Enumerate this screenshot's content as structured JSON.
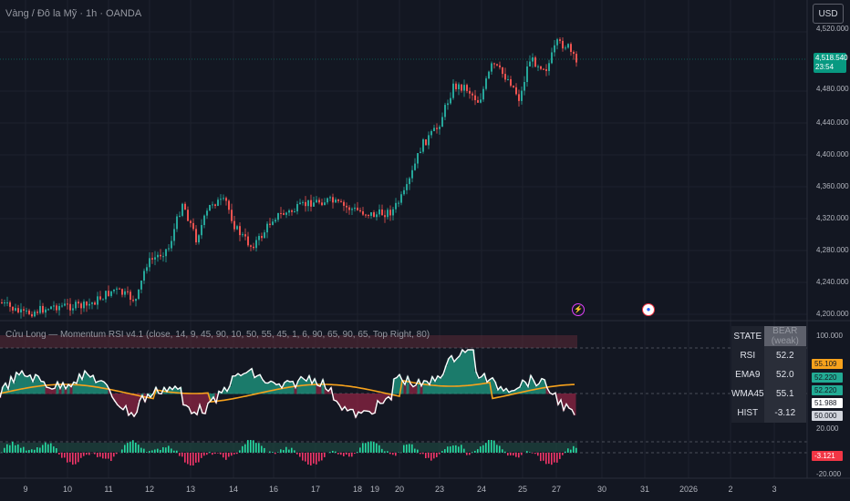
{
  "header": {
    "title": "Vàng / Đô la Mỹ · 1h · OANDA",
    "currency_button": "USD"
  },
  "price_axis": {
    "labels": [
      "4,520.000",
      "4,480.000",
      "4,440.000",
      "4,400.000",
      "4,360.000",
      "4,320.000",
      "4,280.000",
      "4,240.000",
      "4,200.000"
    ],
    "last_price": "4,518.540",
    "countdown": "23:54"
  },
  "indicator": {
    "title": "Cửu Long — Momentum RSI v4.1 (close, 14, 9, 45, 90, 10, 50, 55, 45, 1, 6, 90, 65, 90, 65, Top Right, 80)",
    "axis_labels": [
      "100.000",
      "20.000",
      "-20.000"
    ],
    "value_tags": [
      {
        "text": "55.109",
        "bg": "#f7a21c",
        "fg": "#131722"
      },
      {
        "text": "52.220",
        "bg": "#22ab94",
        "fg": "#131722"
      },
      {
        "text": "52.220",
        "bg": "#22ab94",
        "fg": "#131722"
      },
      {
        "text": "51.988",
        "bg": "#ffffff",
        "fg": "#131722"
      },
      {
        "text": "50.000",
        "bg": "#d1d4dc",
        "fg": "#131722"
      }
    ],
    "hist_tag": {
      "text": "-3.121",
      "bg": "#f23645",
      "fg": "#ffffff"
    },
    "table": {
      "header": {
        "key": "STATE",
        "value": "BEAR (weak)"
      },
      "rows": [
        {
          "key": "RSI",
          "value": "52.2"
        },
        {
          "key": "EMA9",
          "value": "52.0"
        },
        {
          "key": "WMA45",
          "value": "55.1"
        },
        {
          "key": "HIST",
          "value": "-3.12"
        }
      ]
    }
  },
  "time_axis": [
    "9",
    "10",
    "11",
    "12",
    "13",
    "14",
    "16",
    "17",
    "18",
    "19",
    "20",
    "23",
    "24",
    "25",
    "27",
    "30",
    "31",
    "2026",
    "2",
    "3"
  ],
  "colors": {
    "background": "#131722",
    "up": "#26a69a",
    "down": "#ef5350",
    "rsi_line": "#ffffff",
    "wma_line": "#f7a21c",
    "hist_up": "#26d9a0",
    "hist_down": "#f23669"
  },
  "events": [
    {
      "icon": "lightning-icon",
      "glyph": "⚡"
    },
    {
      "icon": "us-flag-icon",
      "glyph": "●"
    }
  ]
}
